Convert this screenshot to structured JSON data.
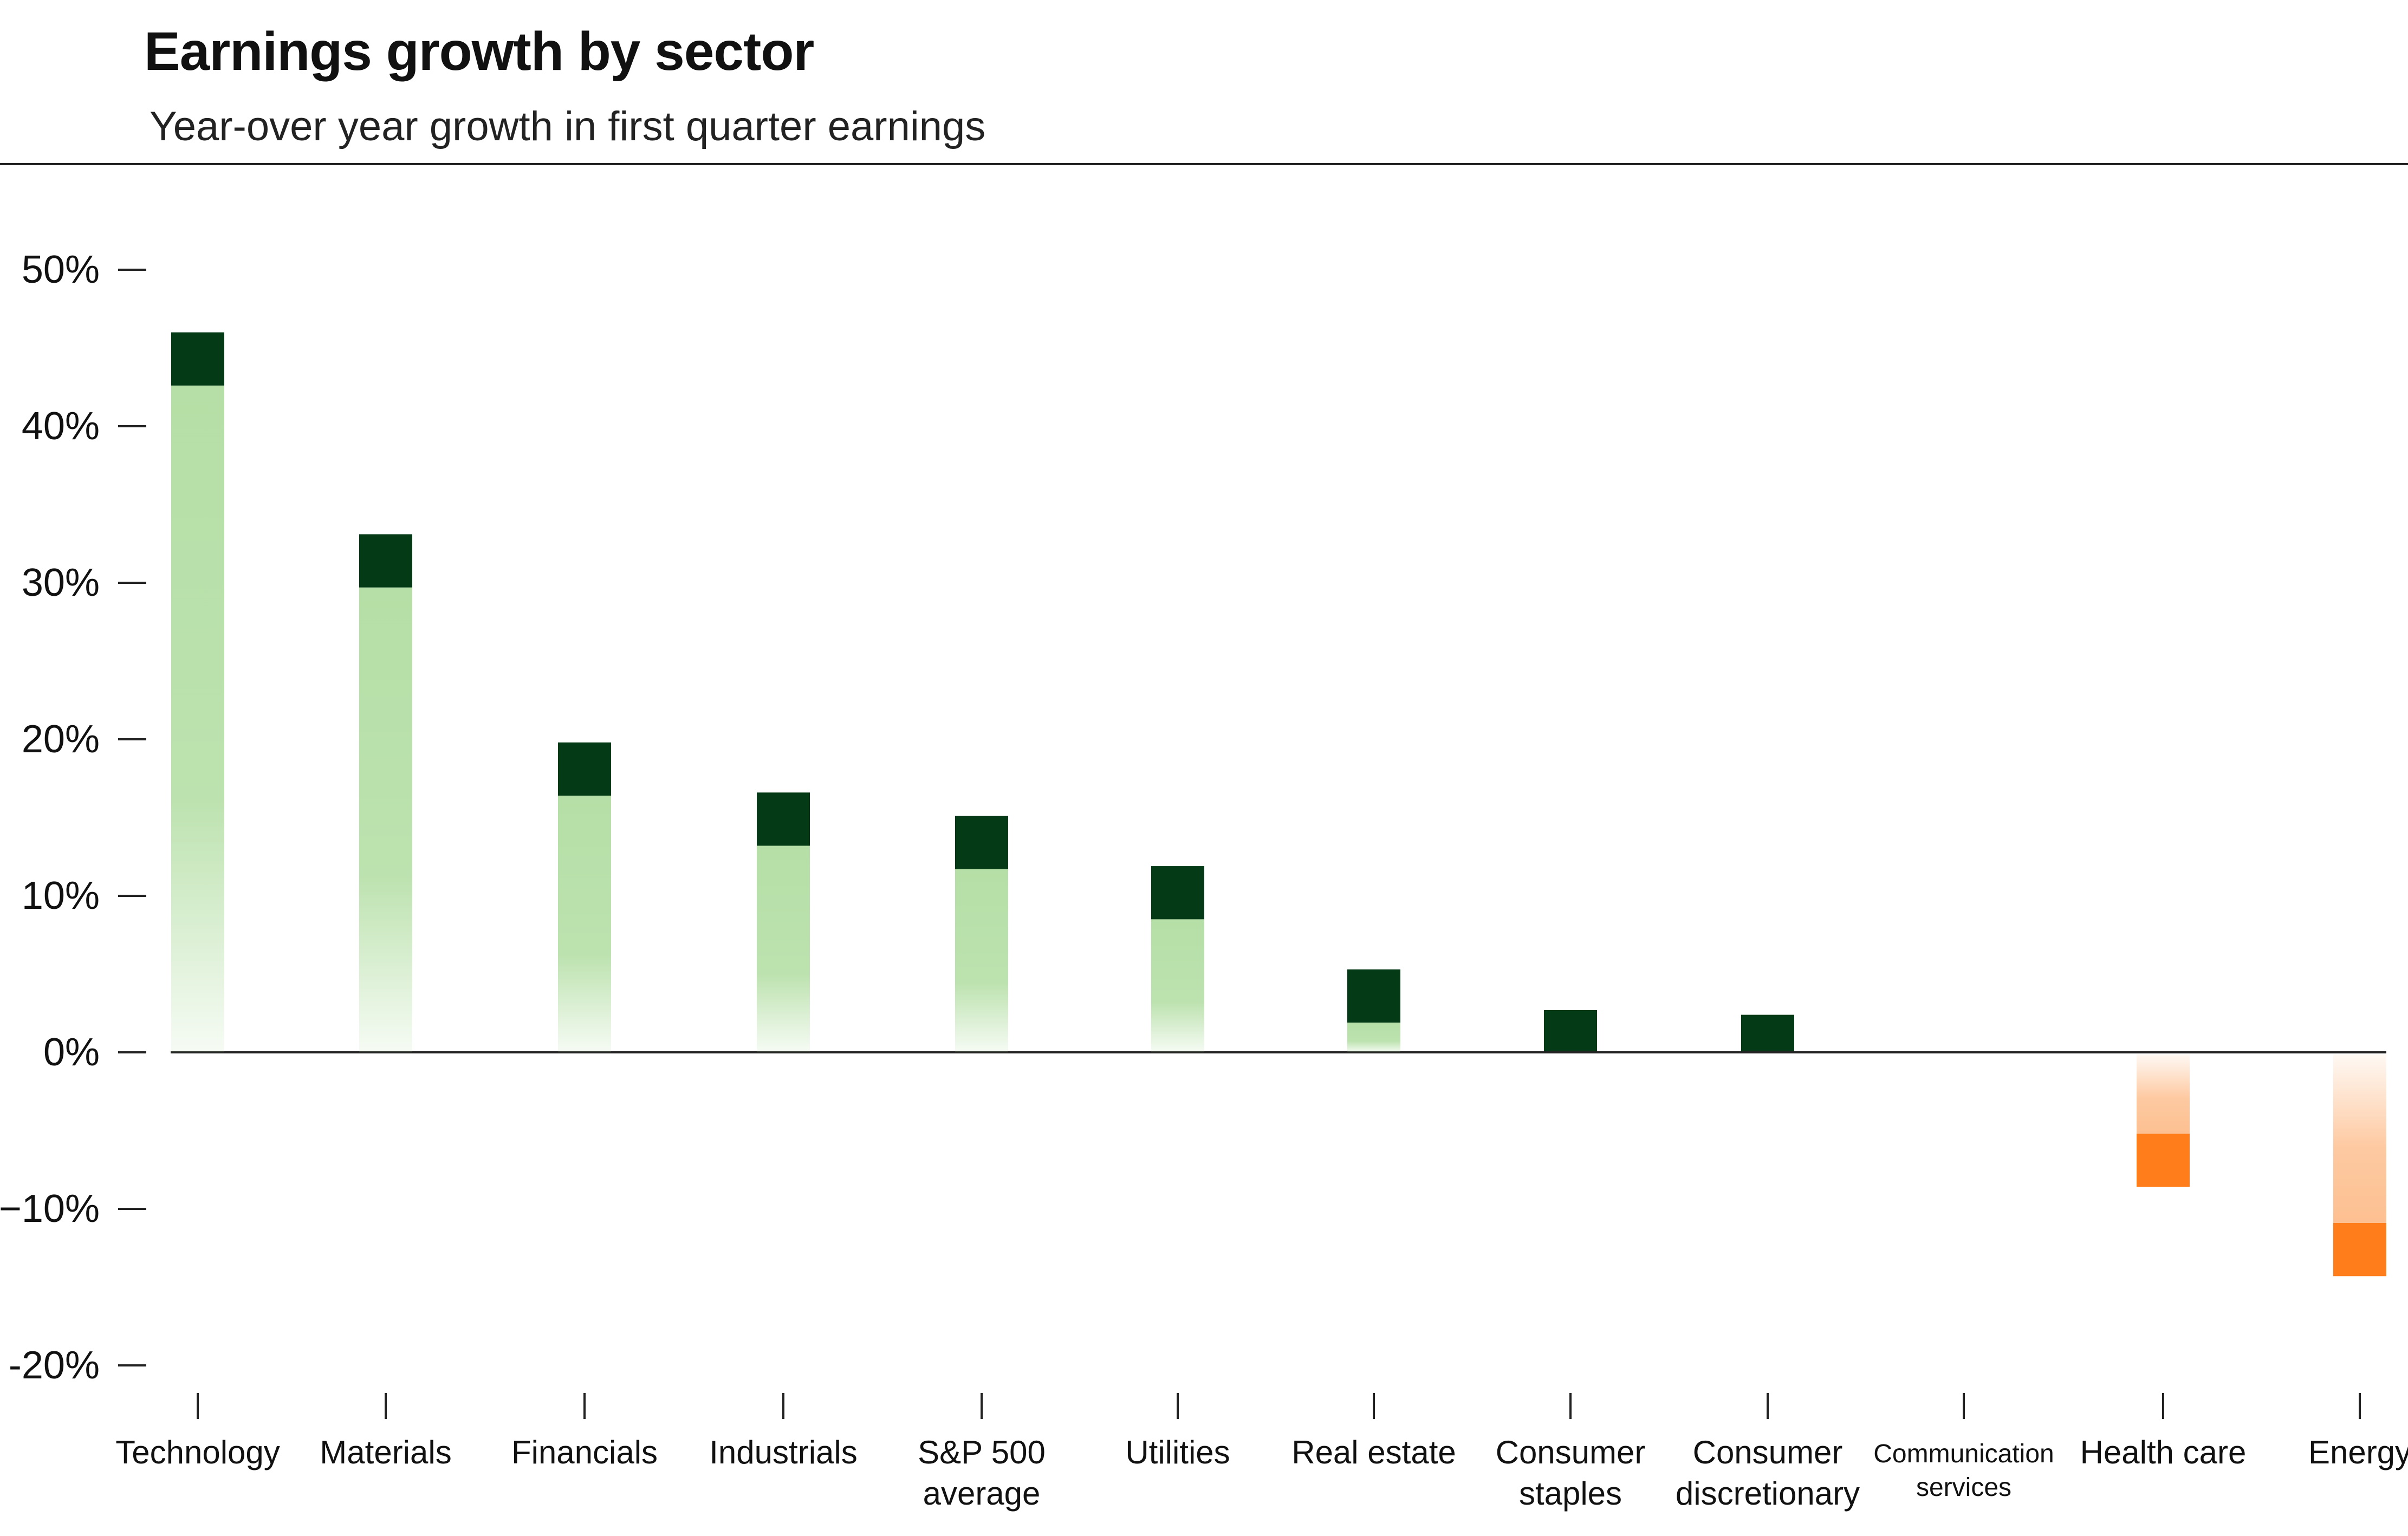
{
  "chart_data": {
    "type": "bar",
    "title": "Earnings growth by sector",
    "subtitle": "Year-over year growth in first quarter earnings",
    "categories": [
      [
        "Technology"
      ],
      [
        "Materials"
      ],
      [
        "Financials"
      ],
      [
        "Industrials"
      ],
      [
        "S&P 500",
        "average"
      ],
      [
        "Utilities"
      ],
      [
        "Real estate"
      ],
      [
        "Consumer",
        "staples"
      ],
      [
        "Consumer",
        "discretionary"
      ],
      [
        "Communication",
        "services"
      ],
      [
        "Health care"
      ],
      [
        "Energy"
      ]
    ],
    "values": [
      46,
      33.1,
      19.8,
      16.6,
      15.1,
      11.9,
      5.3,
      2.7,
      2.4,
      0,
      -8.6,
      -14.3
    ],
    "yticks": [
      "50%",
      "40%",
      "30%",
      "20%",
      "10%",
      "0%",
      "−10%",
      "-20%"
    ],
    "ytick_values": [
      50,
      40,
      30,
      20,
      10,
      0,
      -10,
      -20
    ],
    "ylim": [
      -20,
      50
    ],
    "grid": false,
    "legend": "none",
    "colors": {
      "positive_cap": "#053a16",
      "positive_fill": "#b5dfa6",
      "negative_cap": "#ff7d1a",
      "negative_fill": "#fdc091",
      "axis": "#222222"
    }
  }
}
